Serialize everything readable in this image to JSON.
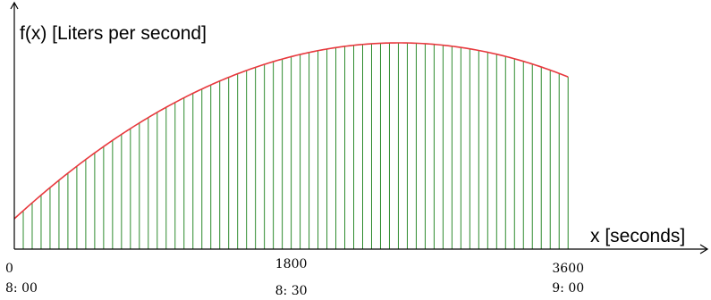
{
  "chart_data": {
    "type": "area",
    "ylabel": "f(x) [Liters per second]",
    "xlabel": "x [seconds]",
    "x_ticks": [
      {
        "value": 0,
        "label": "0",
        "time": "8: 00"
      },
      {
        "value": 1800,
        "label": "1800",
        "time": "8: 30"
      },
      {
        "value": 3600,
        "label": "3600",
        "time": "9: 00"
      }
    ],
    "xlim": [
      0,
      4500
    ],
    "x_end": 3600,
    "curve_peak_x": 2500,
    "curve_shape": "downward parabola",
    "strip_count": 62,
    "grid": false,
    "colors": {
      "curve": "#e8383d",
      "strips": "#2e8b2e",
      "axes": "#000000"
    }
  }
}
